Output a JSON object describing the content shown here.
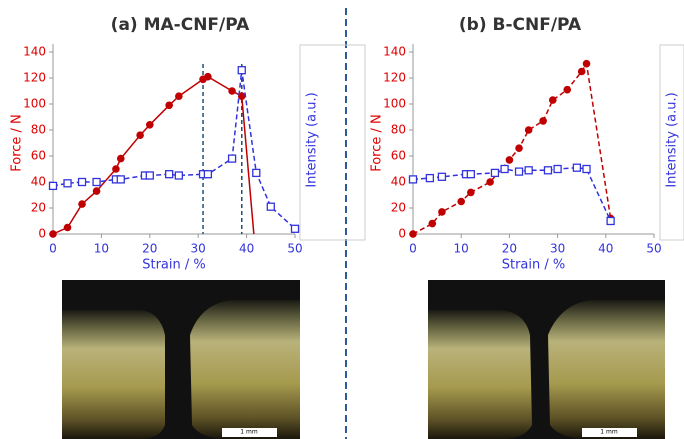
{
  "chart_data": [
    {
      "type": "line",
      "title": "(a) MA-CNF/PA",
      "xlabel": "Strain / %",
      "ylabel": "Force / N",
      "y2label": "Intensity (a.u.)",
      "xlim": [
        0,
        50
      ],
      "xticks": [
        0,
        10,
        20,
        30,
        40,
        50
      ],
      "ylim": [
        0,
        140
      ],
      "yticks": [
        0,
        20,
        40,
        60,
        80,
        100,
        120,
        140
      ],
      "vlines": [
        31,
        39
      ],
      "annotation": "1 mm",
      "series": [
        {
          "color": "#c00000",
          "marker": "circle",
          "dash": false,
          "x": [
            0,
            3,
            6,
            9,
            13,
            14,
            18,
            20,
            24,
            26,
            31,
            32,
            37,
            39
          ],
          "values": [
            0,
            5,
            23,
            33,
            50,
            58,
            76,
            84,
            99,
            106,
            119,
            121,
            110,
            106
          ]
        },
        {
          "color": "#c00000",
          "marker": "none",
          "dash": false,
          "x": [
            39,
            41.5
          ],
          "values": [
            106,
            0
          ]
        },
        {
          "color": "#3333dd",
          "marker": "square",
          "dash": true,
          "x": [
            0,
            3,
            6,
            9,
            13,
            14,
            19,
            20,
            24,
            26,
            31,
            32,
            37,
            39,
            42,
            45,
            50
          ],
          "values": [
            37,
            39,
            40,
            40,
            42,
            42,
            45,
            45,
            46,
            45,
            46,
            46,
            58,
            126,
            47,
            21,
            4
          ]
        }
      ]
    },
    {
      "type": "line",
      "title": "(b) B-CNF/PA",
      "xlabel": "Strain / %",
      "ylabel": "Force / N",
      "y2label": "Intensity (a.u.)",
      "xlim": [
        0,
        50
      ],
      "xticks": [
        0,
        10,
        20,
        30,
        40,
        50
      ],
      "ylim": [
        0,
        140
      ],
      "yticks": [
        0,
        20,
        40,
        60,
        80,
        100,
        120,
        140
      ],
      "vlines": [],
      "annotation": "1 mm",
      "series": [
        {
          "color": "#c00000",
          "marker": "circle",
          "dash": true,
          "x": [
            0,
            4,
            6,
            10,
            12,
            16,
            20,
            22,
            24,
            27,
            29,
            32,
            35,
            36,
            41
          ],
          "values": [
            0,
            8,
            17,
            25,
            32,
            40,
            57,
            66,
            80,
            87,
            103,
            111,
            125,
            131,
            12
          ]
        },
        {
          "color": "#3333dd",
          "marker": "square",
          "dash": true,
          "x": [
            0,
            3.5,
            6,
            11,
            12,
            17,
            19,
            22,
            24,
            28,
            30,
            34,
            36,
            41
          ],
          "values": [
            42,
            43,
            44,
            46,
            46,
            47,
            50,
            48,
            49,
            49,
            50,
            51,
            50,
            10
          ]
        }
      ]
    }
  ]
}
